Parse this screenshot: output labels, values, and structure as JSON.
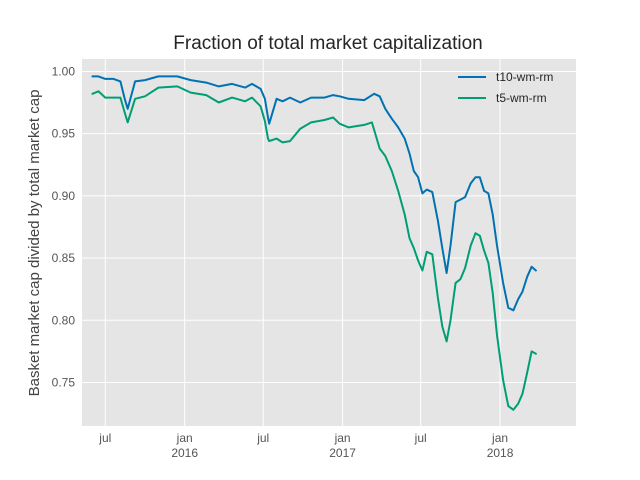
{
  "chart_data": {
    "type": "line",
    "title": "Fraction of total market capitalization",
    "xlabel": "",
    "ylabel": "Basket market cap divided by total market cap",
    "xlim": [
      "2015-05-08",
      "2018-06-26"
    ],
    "ylim": [
      0.715,
      1.01
    ],
    "grid": true,
    "background": "#e5e5e5",
    "legend": {
      "position": "top-right"
    },
    "x_ticks": [
      {
        "date": "2015-07-01",
        "label": "jul",
        "year": ""
      },
      {
        "date": "2016-01-01",
        "label": "jan",
        "year": "2016"
      },
      {
        "date": "2016-07-01",
        "label": "jul",
        "year": ""
      },
      {
        "date": "2017-01-01",
        "label": "jan",
        "year": "2017"
      },
      {
        "date": "2017-07-01",
        "label": "jul",
        "year": ""
      },
      {
        "date": "2018-01-01",
        "label": "jan",
        "year": "2018"
      }
    ],
    "y_ticks": [
      {
        "value": 0.75,
        "label": "0.75"
      },
      {
        "value": 0.8,
        "label": "0.80"
      },
      {
        "value": 0.85,
        "label": "0.85"
      },
      {
        "value": 0.9,
        "label": "0.90"
      },
      {
        "value": 0.95,
        "label": "0.95"
      },
      {
        "value": 1.0,
        "label": "1.00"
      }
    ],
    "series": [
      {
        "name": "t10-wm-rm",
        "color": "#0072b2",
        "points": [
          [
            "2015-06-01",
            0.996
          ],
          [
            "2015-06-15",
            0.996
          ],
          [
            "2015-07-01",
            0.994
          ],
          [
            "2015-07-20",
            0.994
          ],
          [
            "2015-08-05",
            0.992
          ],
          [
            "2015-08-15",
            0.978
          ],
          [
            "2015-08-22",
            0.97
          ],
          [
            "2015-09-08",
            0.992
          ],
          [
            "2015-10-01",
            0.993
          ],
          [
            "2015-11-01",
            0.996
          ],
          [
            "2015-12-15",
            0.996
          ],
          [
            "2016-01-15",
            0.993
          ],
          [
            "2016-02-20",
            0.991
          ],
          [
            "2016-03-20",
            0.988
          ],
          [
            "2016-04-20",
            0.99
          ],
          [
            "2016-05-20",
            0.987
          ],
          [
            "2016-06-05",
            0.99
          ],
          [
            "2016-06-25",
            0.986
          ],
          [
            "2016-07-05",
            0.978
          ],
          [
            "2016-07-12",
            0.963
          ],
          [
            "2016-07-15",
            0.958
          ],
          [
            "2016-08-01",
            0.978
          ],
          [
            "2016-08-15",
            0.976
          ],
          [
            "2016-09-01",
            0.979
          ],
          [
            "2016-09-25",
            0.975
          ],
          [
            "2016-10-20",
            0.979
          ],
          [
            "2016-11-20",
            0.979
          ],
          [
            "2016-12-10",
            0.981
          ],
          [
            "2016-12-25",
            0.98
          ],
          [
            "2017-01-15",
            0.978
          ],
          [
            "2017-02-20",
            0.977
          ],
          [
            "2017-03-15",
            0.982
          ],
          [
            "2017-03-28",
            0.98
          ],
          [
            "2017-04-10",
            0.97
          ],
          [
            "2017-04-25",
            0.962
          ],
          [
            "2017-05-10",
            0.955
          ],
          [
            "2017-05-25",
            0.946
          ],
          [
            "2017-06-05",
            0.934
          ],
          [
            "2017-06-15",
            0.92
          ],
          [
            "2017-06-25",
            0.915
          ],
          [
            "2017-07-05",
            0.902
          ],
          [
            "2017-07-15",
            0.905
          ],
          [
            "2017-07-28",
            0.903
          ],
          [
            "2017-08-10",
            0.88
          ],
          [
            "2017-08-20",
            0.858
          ],
          [
            "2017-08-30",
            0.838
          ],
          [
            "2017-09-08",
            0.86
          ],
          [
            "2017-09-20",
            0.895
          ],
          [
            "2017-10-01",
            0.897
          ],
          [
            "2017-10-12",
            0.899
          ],
          [
            "2017-10-25",
            0.91
          ],
          [
            "2017-11-05",
            0.915
          ],
          [
            "2017-11-15",
            0.915
          ],
          [
            "2017-11-25",
            0.904
          ],
          [
            "2017-12-05",
            0.902
          ],
          [
            "2017-12-15",
            0.885
          ],
          [
            "2017-12-25",
            0.86
          ],
          [
            "2018-01-08",
            0.83
          ],
          [
            "2018-01-20",
            0.81
          ],
          [
            "2018-02-01",
            0.808
          ],
          [
            "2018-02-12",
            0.817
          ],
          [
            "2018-02-22",
            0.823
          ],
          [
            "2018-03-05",
            0.835
          ],
          [
            "2018-03-15",
            0.843
          ],
          [
            "2018-03-25",
            0.84
          ]
        ]
      },
      {
        "name": "t5-wm-rm",
        "color": "#009e73",
        "points": [
          [
            "2015-06-01",
            0.982
          ],
          [
            "2015-06-15",
            0.984
          ],
          [
            "2015-07-01",
            0.979
          ],
          [
            "2015-07-20",
            0.979
          ],
          [
            "2015-08-05",
            0.979
          ],
          [
            "2015-08-15",
            0.967
          ],
          [
            "2015-08-22",
            0.959
          ],
          [
            "2015-09-08",
            0.978
          ],
          [
            "2015-10-01",
            0.98
          ],
          [
            "2015-11-01",
            0.987
          ],
          [
            "2015-12-15",
            0.988
          ],
          [
            "2016-01-15",
            0.983
          ],
          [
            "2016-02-20",
            0.981
          ],
          [
            "2016-03-20",
            0.975
          ],
          [
            "2016-04-20",
            0.979
          ],
          [
            "2016-05-20",
            0.976
          ],
          [
            "2016-06-05",
            0.979
          ],
          [
            "2016-06-25",
            0.972
          ],
          [
            "2016-07-05",
            0.96
          ],
          [
            "2016-07-12",
            0.946
          ],
          [
            "2016-07-15",
            0.944
          ],
          [
            "2016-08-01",
            0.946
          ],
          [
            "2016-08-15",
            0.943
          ],
          [
            "2016-09-01",
            0.944
          ],
          [
            "2016-09-25",
            0.954
          ],
          [
            "2016-10-20",
            0.959
          ],
          [
            "2016-11-20",
            0.961
          ],
          [
            "2016-12-10",
            0.963
          ],
          [
            "2016-12-25",
            0.958
          ],
          [
            "2017-01-15",
            0.955
          ],
          [
            "2017-02-20",
            0.957
          ],
          [
            "2017-03-10",
            0.959
          ],
          [
            "2017-03-28",
            0.938
          ],
          [
            "2017-04-10",
            0.932
          ],
          [
            "2017-04-25",
            0.92
          ],
          [
            "2017-05-10",
            0.904
          ],
          [
            "2017-05-25",
            0.885
          ],
          [
            "2017-06-05",
            0.866
          ],
          [
            "2017-06-15",
            0.858
          ],
          [
            "2017-06-25",
            0.848
          ],
          [
            "2017-07-05",
            0.84
          ],
          [
            "2017-07-15",
            0.855
          ],
          [
            "2017-07-28",
            0.853
          ],
          [
            "2017-08-10",
            0.818
          ],
          [
            "2017-08-20",
            0.795
          ],
          [
            "2017-08-30",
            0.783
          ],
          [
            "2017-09-08",
            0.8
          ],
          [
            "2017-09-20",
            0.83
          ],
          [
            "2017-10-01",
            0.833
          ],
          [
            "2017-10-12",
            0.842
          ],
          [
            "2017-10-25",
            0.86
          ],
          [
            "2017-11-05",
            0.87
          ],
          [
            "2017-11-15",
            0.868
          ],
          [
            "2017-11-25",
            0.856
          ],
          [
            "2017-12-05",
            0.846
          ],
          [
            "2017-12-15",
            0.822
          ],
          [
            "2017-12-25",
            0.788
          ],
          [
            "2018-01-08",
            0.752
          ],
          [
            "2018-01-20",
            0.731
          ],
          [
            "2018-02-01",
            0.728
          ],
          [
            "2018-02-12",
            0.733
          ],
          [
            "2018-02-22",
            0.741
          ],
          [
            "2018-03-05",
            0.758
          ],
          [
            "2018-03-15",
            0.775
          ],
          [
            "2018-03-25",
            0.773
          ]
        ]
      }
    ]
  }
}
